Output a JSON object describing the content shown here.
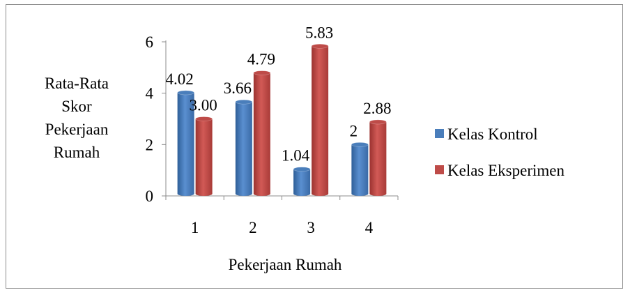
{
  "chart_data": {
    "type": "bar",
    "style": "3d-cylinder",
    "categories": [
      "1",
      "2",
      "3",
      "4"
    ],
    "series": [
      {
        "name": "Kelas Kontrol",
        "values": [
          4.02,
          3.66,
          1.04,
          2
        ],
        "labels": [
          "4.02",
          "3.66",
          "1.04",
          "2"
        ],
        "color": "#4a7ebb"
      },
      {
        "name": "Kelas Eksperimen",
        "values": [
          3.0,
          4.79,
          5.83,
          2.88
        ],
        "labels": [
          "3.00",
          "4.79",
          "5.83",
          "2.88"
        ],
        "color": "#be4b48"
      }
    ],
    "xlabel": "Pekerjaan Rumah",
    "ylabel_lines": [
      "Rata-Rata",
      "Skor",
      "Pekerjaan",
      "Rumah"
    ],
    "ylim": [
      0,
      6
    ],
    "yticks": [
      "0",
      "2",
      "4",
      "6"
    ],
    "grid": false,
    "legend_position": "right"
  }
}
